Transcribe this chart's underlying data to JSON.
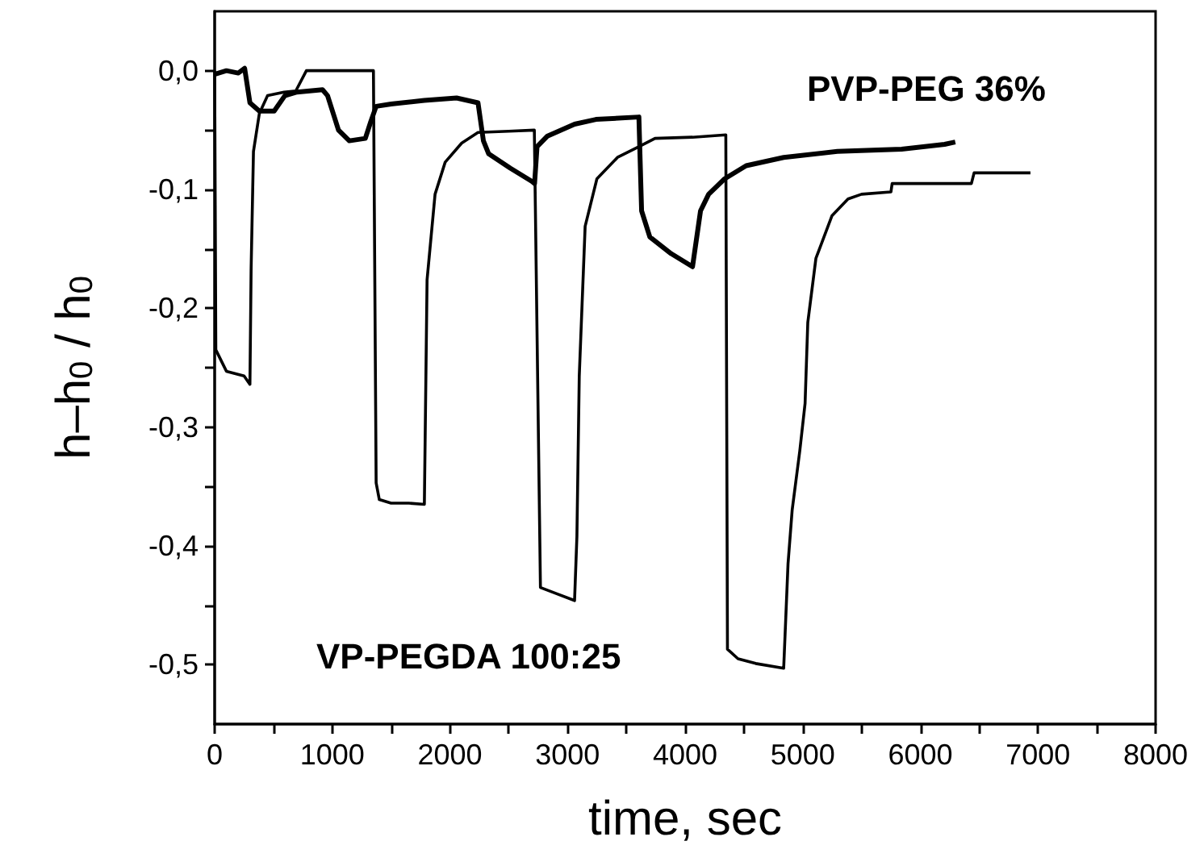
{
  "chart_data": {
    "type": "line",
    "xlabel": "time, sec",
    "ylabel": "h–h$_{0}$ / h$_{0}$",
    "xlim": [
      0,
      8000
    ],
    "ylim": [
      -0.55,
      0.05
    ],
    "xticks": [
      0,
      {
        "value": 500,
        "label": null
      },
      1000,
      {
        "value": 1500,
        "label": null
      },
      2000,
      {
        "value": 2500,
        "label": null
      },
      3000,
      {
        "value": 3500,
        "label": null
      },
      4000,
      {
        "value": 4500,
        "label": null
      },
      5000,
      {
        "value": 5500,
        "label": null
      },
      6000,
      {
        "value": 6500,
        "label": null
      },
      7000,
      {
        "value": 7500,
        "label": null
      },
      8000
    ],
    "yticks": [
      {
        "value": 0,
        "label": "0,0"
      },
      {
        "value": -0.05,
        "label": null
      },
      {
        "value": -0.1,
        "label": "-0,1"
      },
      {
        "value": -0.15,
        "label": null
      },
      {
        "value": -0.2,
        "label": "-0,2"
      },
      {
        "value": -0.25,
        "label": null
      },
      {
        "value": -0.3,
        "label": "-0,3"
      },
      {
        "value": -0.35,
        "label": null
      },
      {
        "value": -0.4,
        "label": "-0,4"
      },
      {
        "value": -0.45,
        "label": null
      },
      {
        "value": -0.5,
        "label": "-0,5"
      }
    ],
    "grid": false,
    "legend": false,
    "marker": "none",
    "line_style": "solid",
    "series": [
      {
        "name": "PVP-PEG 36%",
        "color": "#000000",
        "x": [
          0,
          100,
          200,
          255,
          300,
          380,
          506,
          597,
          700,
          917,
          960,
          1053,
          1145,
          1281,
          1327,
          1373,
          1500,
          1783,
          2057,
          2239,
          2285,
          2330,
          2513,
          2695,
          2720,
          2741,
          2830,
          3060,
          3242,
          3607,
          3630,
          3700,
          3881,
          4063,
          4131,
          4200,
          4336,
          4519,
          4838,
          5294,
          5841,
          6206,
          6297
        ],
        "values": [
          -0.003,
          0.0,
          -0.002,
          0.002,
          -0.027,
          -0.034,
          -0.034,
          -0.021,
          -0.018,
          -0.016,
          -0.021,
          -0.05,
          -0.059,
          -0.057,
          -0.043,
          -0.03,
          -0.028,
          -0.025,
          -0.023,
          -0.027,
          -0.059,
          -0.07,
          -0.082,
          -0.093,
          -0.095,
          -0.064,
          -0.055,
          -0.045,
          -0.041,
          -0.039,
          -0.118,
          -0.14,
          -0.154,
          -0.165,
          -0.118,
          -0.104,
          -0.091,
          -0.08,
          -0.073,
          -0.068,
          -0.066,
          -0.062,
          -0.06
        ]
      },
      {
        "name": "VP-PEGDA 100:25",
        "color": "#000000",
        "x": [
          0,
          10,
          100,
          250,
          300,
          310,
          330,
          380,
          450,
          590,
          690,
          780,
          1000,
          1350,
          1373,
          1400,
          1500,
          1650,
          1783,
          1806,
          1874,
          1960,
          2100,
          2239,
          2500,
          2718,
          2770,
          2900,
          3060,
          3080,
          3100,
          3150,
          3250,
          3425,
          3607,
          3744,
          4063,
          4346,
          4360,
          4450,
          4600,
          4838,
          4875,
          4910,
          4975,
          5020,
          5043,
          5112,
          5249,
          5385,
          5500,
          5750,
          5760,
          6434,
          6457,
          6936
        ],
        "values": [
          0.0,
          -0.235,
          -0.253,
          -0.257,
          -0.264,
          -0.167,
          -0.068,
          -0.036,
          -0.021,
          -0.018,
          -0.017,
          0.0,
          0.0,
          0.0,
          -0.347,
          -0.361,
          -0.364,
          -0.364,
          -0.365,
          -0.176,
          -0.104,
          -0.077,
          -0.061,
          -0.052,
          -0.051,
          -0.05,
          -0.435,
          -0.44,
          -0.446,
          -0.392,
          -0.257,
          -0.131,
          -0.091,
          -0.073,
          -0.064,
          -0.057,
          -0.056,
          -0.054,
          -0.487,
          -0.495,
          -0.499,
          -0.503,
          -0.415,
          -0.37,
          -0.32,
          -0.28,
          -0.212,
          -0.158,
          -0.122,
          -0.108,
          -0.104,
          -0.102,
          -0.095,
          -0.095,
          -0.086,
          -0.086
        ]
      }
    ]
  }
}
